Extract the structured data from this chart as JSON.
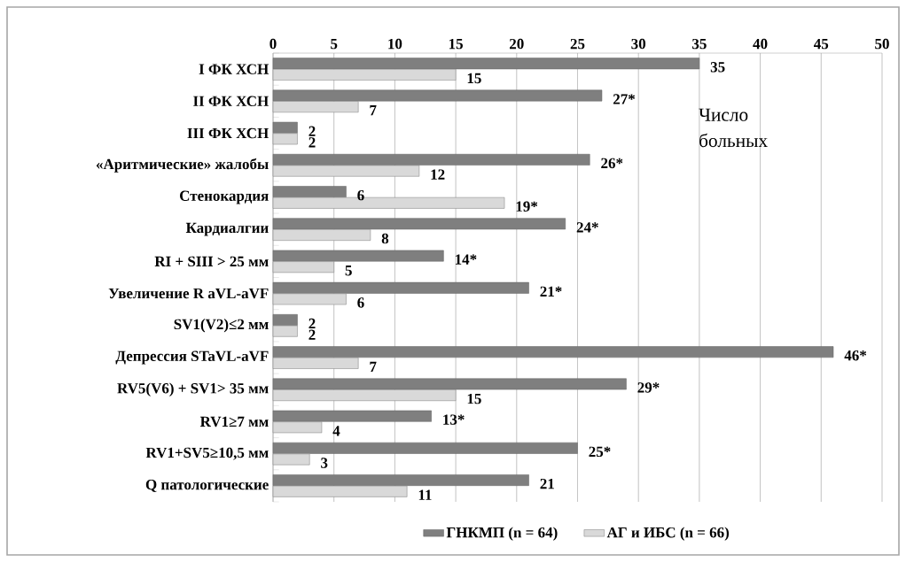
{
  "chart_data": {
    "type": "bar",
    "orientation": "horizontal",
    "xlabel": "Число больных",
    "categories": [
      "I ФК ХСН",
      "II ФК ХСН",
      "III ФК ХСН",
      "«Аритмические» жалобы",
      "Стенокардия",
      "Кардиалгии",
      "RI + SIII > 25 мм",
      "Увеличение R aVL-aVF",
      "SV1(V2)≤2 мм",
      "Депрессия STaVL-aVF",
      "RV5(V6) + SV1> 35 мм",
      "RV1≥7 мм",
      "RV1+SV5≥10,5 мм",
      "Q патологические"
    ],
    "series": [
      {
        "name": "ГНКМП (n = 64)",
        "color": "#7f7f7f",
        "values": [
          35,
          27,
          2,
          26,
          6,
          24,
          14,
          21,
          2,
          46,
          29,
          13,
          25,
          21
        ],
        "value_labels": [
          "35",
          "27*",
          "2",
          "26*",
          "6",
          "24*",
          "14*",
          "21*",
          "2",
          "46*",
          "29*",
          "13*",
          "25*",
          "21"
        ]
      },
      {
        "name": "АГ и ИБС (n = 66)",
        "color": "#d9d9d9",
        "values": [
          15,
          7,
          2,
          12,
          19,
          8,
          5,
          6,
          2,
          7,
          15,
          4,
          3,
          11
        ],
        "value_labels": [
          "15",
          "7",
          "2",
          "12",
          "19*",
          "8",
          "5",
          "6",
          "2",
          "7",
          "15",
          "4",
          "3",
          "11"
        ]
      }
    ],
    "xlim": [
      0,
      50
    ],
    "xticks": [
      0,
      5,
      10,
      15,
      20,
      25,
      30,
      35,
      40,
      45,
      50
    ],
    "grid": "x",
    "legend": "bottom"
  }
}
